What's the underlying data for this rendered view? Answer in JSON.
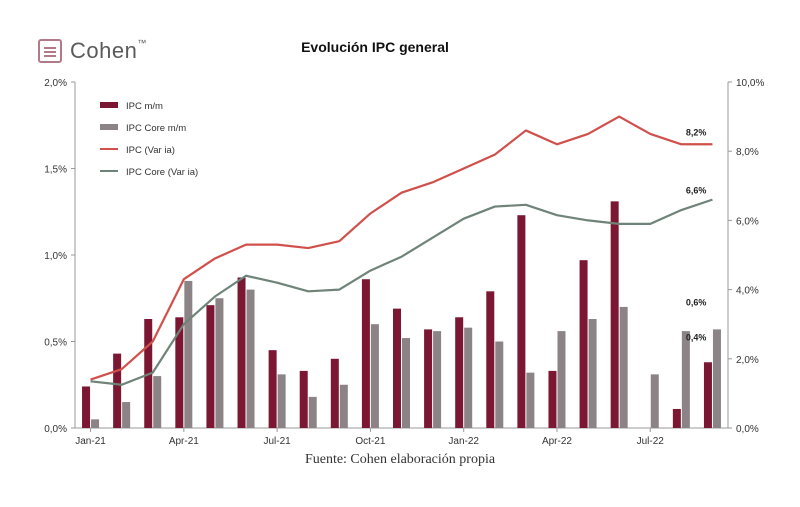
{
  "brand": {
    "name": "Cohen",
    "tm": "™"
  },
  "source": "Fuente: Cohen elaboración propia",
  "chart_data": {
    "type": "bar",
    "title": "Evolución IPC general",
    "x_tick_labels": [
      "Jan-21",
      "Apr-21",
      "Jul-21",
      "Oct-21",
      "Jan-22",
      "Apr-22",
      "Jul-22"
    ],
    "categories": [
      "Jan-21",
      "Feb-21",
      "Mar-21",
      "Apr-21",
      "May-21",
      "Jun-21",
      "Jul-21",
      "Aug-21",
      "Sep-21",
      "Oct-21",
      "Nov-21",
      "Dec-21",
      "Jan-22",
      "Feb-22",
      "Mar-22",
      "Apr-22",
      "May-22",
      "Jun-22",
      "Jul-22",
      "Aug-22",
      "Sep-22"
    ],
    "y_left": {
      "min": 0,
      "max": 2.0,
      "ticks": [
        "0,0%",
        "0,5%",
        "1,0%",
        "1,5%",
        "2,0%"
      ]
    },
    "y_right": {
      "min": 0,
      "max": 10.0,
      "ticks": [
        "0,0%",
        "2,0%",
        "4,0%",
        "6,0%",
        "8,0%",
        "10,0%"
      ]
    },
    "legend_position": "top-left",
    "series": [
      {
        "name": "IPC m/m",
        "type": "bar",
        "axis": "left",
        "color": "#7b1733",
        "values": [
          0.24,
          0.43,
          0.63,
          0.64,
          0.71,
          0.87,
          0.45,
          0.33,
          0.4,
          0.86,
          0.69,
          0.57,
          0.64,
          0.79,
          1.23,
          0.33,
          0.97,
          1.31,
          0.0,
          0.11,
          0.38
        ]
      },
      {
        "name": "IPC Core m/m",
        "type": "bar",
        "axis": "left",
        "color": "#8b8385",
        "values": [
          0.05,
          0.15,
          0.3,
          0.85,
          0.75,
          0.8,
          0.31,
          0.18,
          0.25,
          0.6,
          0.52,
          0.56,
          0.58,
          0.5,
          0.32,
          0.56,
          0.63,
          0.7,
          0.31,
          0.56,
          0.57
        ]
      },
      {
        "name": "IPC (Var ia)",
        "type": "line",
        "axis": "right",
        "color": "#d0504b",
        "values": [
          1.4,
          1.7,
          2.5,
          4.3,
          4.9,
          5.3,
          5.3,
          5.2,
          5.4,
          6.2,
          6.8,
          7.1,
          7.5,
          7.9,
          8.6,
          8.2,
          8.5,
          9.0,
          8.5,
          8.2,
          8.2
        ]
      },
      {
        "name": "IPC Core (Var ia)",
        "type": "line",
        "axis": "right",
        "color": "#6f8478",
        "values": [
          1.35,
          1.25,
          1.6,
          3.0,
          3.8,
          4.4,
          4.2,
          3.95,
          4.0,
          4.55,
          4.95,
          5.5,
          6.05,
          6.4,
          6.45,
          6.15,
          6.0,
          5.9,
          5.9,
          6.3,
          6.6
        ]
      }
    ],
    "annotations": [
      {
        "text": "8,2%",
        "series_index": 2,
        "point_index": 20,
        "axis": "right",
        "value": 8.2
      },
      {
        "text": "6,6%",
        "series_index": 3,
        "point_index": 20,
        "axis": "right",
        "value": 6.6
      },
      {
        "text": "0,6%",
        "series_index": 1,
        "point_index": 20,
        "axis": "left",
        "value": 0.57
      },
      {
        "text": "0,4%",
        "series_index": 0,
        "point_index": 20,
        "axis": "left",
        "value": 0.38
      }
    ],
    "grid": false
  }
}
